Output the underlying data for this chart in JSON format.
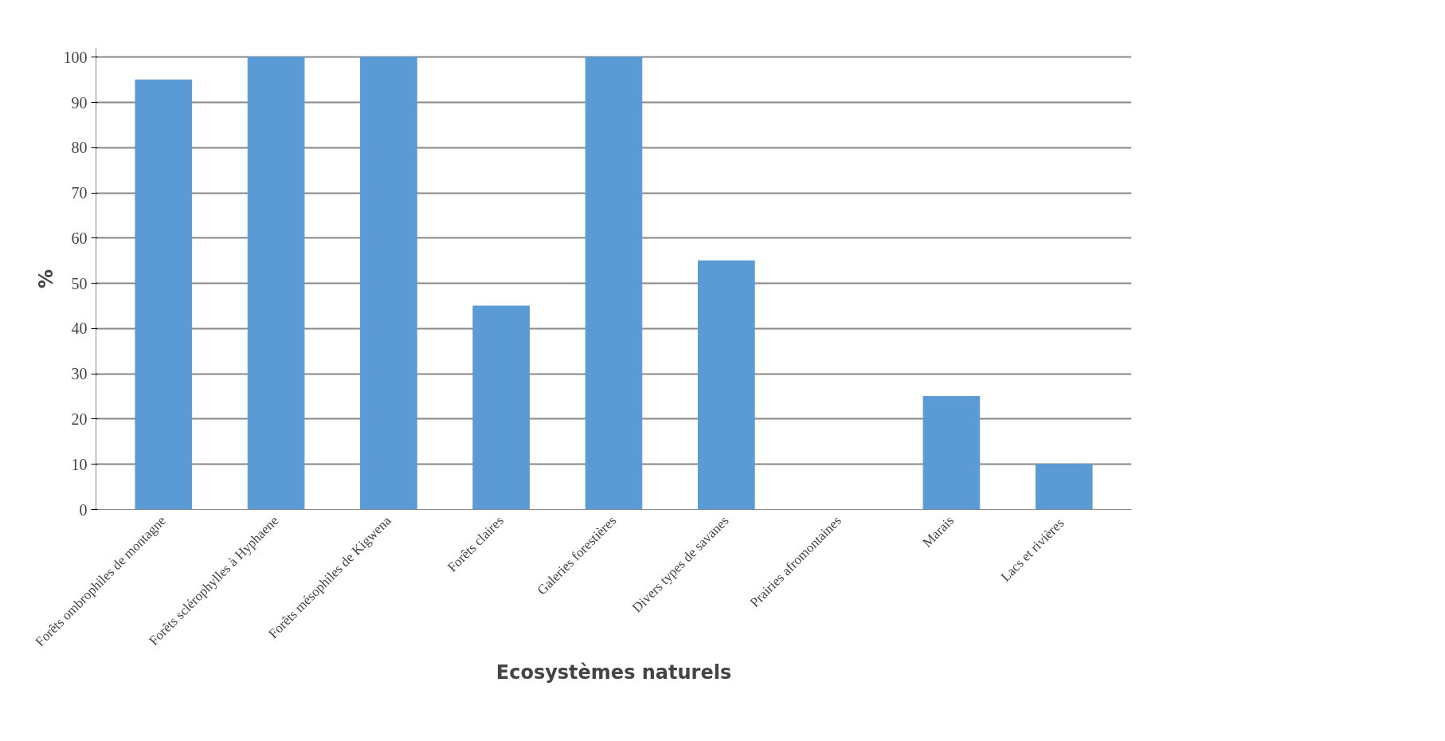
{
  "chart_data": {
    "type": "bar",
    "xlabel": "Ecosystèmes naturels",
    "ylabel": "%",
    "categories": [
      "Forêts ombrophiles de montagne",
      "Forêts sclérophylles à Hyphaene",
      "Forêts mésophiles de Kigwena",
      "Forêts claires",
      "Galeries forestières",
      "Divers types de savanes",
      "Prairies afromontaines",
      "Marais",
      "Lacs  et rivières"
    ],
    "values": [
      95,
      100,
      100,
      45,
      100,
      55,
      0,
      25,
      10
    ],
    "color": "#5b9bd5",
    "ylim": [
      0,
      100
    ],
    "yticks": [
      0,
      10,
      20,
      30,
      40,
      50,
      60,
      70,
      80,
      90,
      100
    ],
    "grid": "y"
  }
}
